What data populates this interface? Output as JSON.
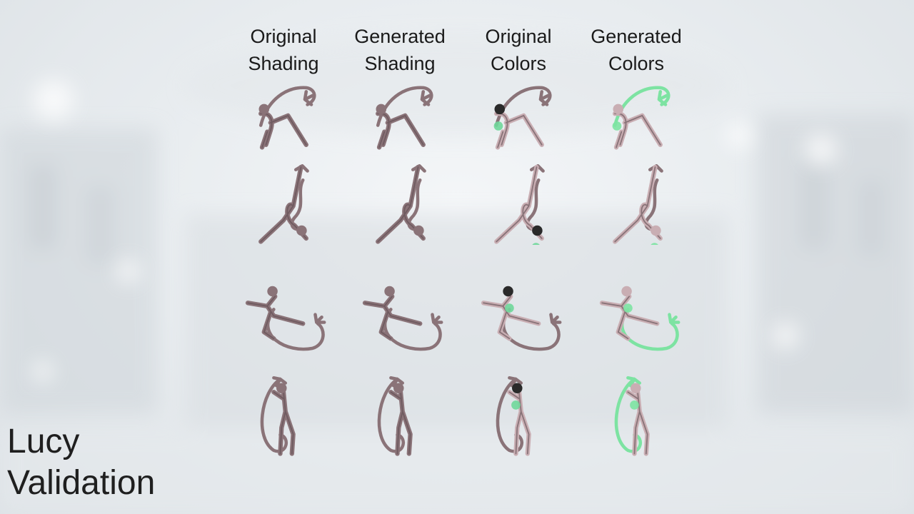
{
  "columns": [
    {
      "label": "Original\nShading"
    },
    {
      "label": "Generated\nShading"
    },
    {
      "label": "Original\nColors"
    },
    {
      "label": "Generated\nColors"
    }
  ],
  "title": {
    "line1": "Lucy",
    "line2": "Validation"
  },
  "colors": {
    "sprite_base": "#8a7378",
    "sprite_dark": "#5e4b50",
    "sprite_light": "#c9aeb3",
    "generated_accent": "#7de3a2",
    "original_accent": "#6fd79a",
    "hair_dark": "#2a2a2a"
  },
  "poses": [
    "leaning-lunge",
    "vertical-split",
    "high-kick",
    "tail-loop-stand"
  ]
}
